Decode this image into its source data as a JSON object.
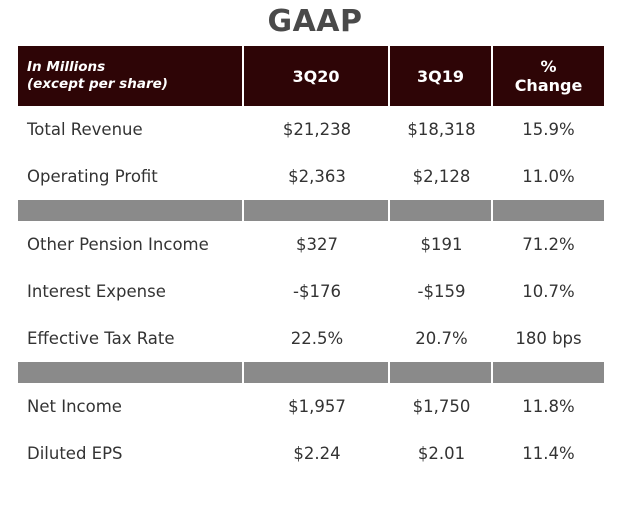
{
  "title": "GAAP",
  "header": {
    "label_line1": "In Millions",
    "label_line2": "(except per share)",
    "col1": "3Q20",
    "col2": "3Q19",
    "col3_line1": "%",
    "col3_line2": "Change"
  },
  "group1": [
    {
      "label": "Total Revenue",
      "v1": "$21,238",
      "v2": "$18,318",
      "chg": "15.9%"
    },
    {
      "label": "Operating Profit",
      "v1": "$2,363",
      "v2": "$2,128",
      "chg": "11.0%"
    }
  ],
  "group2": [
    {
      "label": "Other Pension Income",
      "v1": "$327",
      "v2": "$191",
      "chg": "71.2%"
    },
    {
      "label": "Interest Expense",
      "v1": "-$176",
      "v2": "-$159",
      "chg": "10.7%"
    },
    {
      "label": "Effective Tax Rate",
      "v1": "22.5%",
      "v2": "20.7%",
      "chg": "180 bps"
    }
  ],
  "group3": [
    {
      "label": "Net Income",
      "v1": "$1,957",
      "v2": "$1,750",
      "chg": "11.8%"
    },
    {
      "label": "Diluted EPS",
      "v1": "$2.24",
      "v2": "$2.01",
      "chg": "11.4%"
    }
  ],
  "colors": {
    "header_bg": "#2e0506",
    "separator": "#8a8a8a",
    "text": "#333333"
  }
}
